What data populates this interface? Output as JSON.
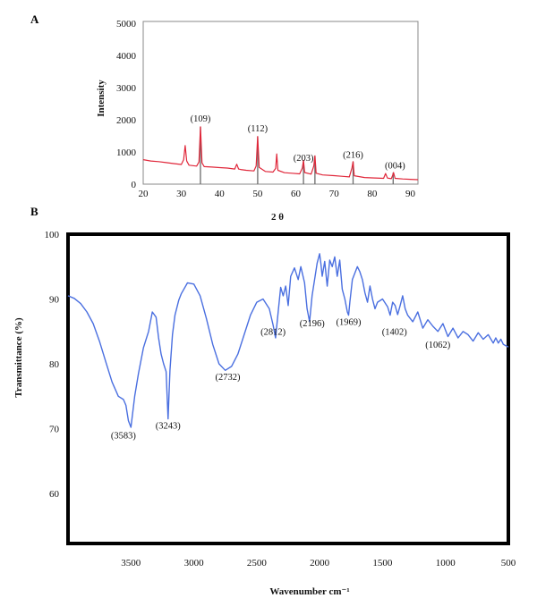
{
  "panel_labels": [
    "A",
    "B"
  ],
  "colors": {
    "xrd_line": "#e0273a",
    "xrd_stick": "#6b6b6b",
    "ftir_line": "#4a6fe0",
    "frame": "#000000"
  },
  "chart_data": [
    {
      "type": "line",
      "panel": "A",
      "title": "",
      "xlabel": "2 θ",
      "ylabel": "Intensity",
      "xlim": [
        20,
        92
      ],
      "ylim": [
        0,
        5000
      ],
      "xticks": [
        20,
        30,
        40,
        50,
        60,
        70,
        80,
        90
      ],
      "yticks": [
        0,
        1000,
        2000,
        3000,
        4000,
        5000
      ],
      "grid": false,
      "series": [
        {
          "x": [
            20,
            22,
            24,
            26,
            28,
            29,
            30,
            30.6,
            31,
            31.4,
            32,
            33,
            34,
            34.6,
            35,
            35.4,
            36,
            38,
            40,
            42,
            44,
            44.5,
            45,
            45.5,
            47,
            49,
            49.6,
            50,
            50.4,
            52,
            54,
            54.7,
            55,
            55.3,
            57,
            59,
            61,
            61.7,
            62,
            62.3,
            64,
            64.7,
            65,
            65.3,
            67,
            70,
            72,
            74,
            74.7,
            75,
            75.3,
            78,
            80,
            83,
            83.5,
            84,
            85,
            85.3,
            85.6,
            86,
            88,
            90,
            92
          ],
          "y": [
            760,
            720,
            700,
            670,
            640,
            625,
            610,
            760,
            1200,
            720,
            590,
            575,
            560,
            690,
            1780,
            660,
            545,
            530,
            515,
            500,
            470,
            620,
            470,
            455,
            430,
            410,
            560,
            1480,
            520,
            395,
            375,
            490,
            940,
            430,
            355,
            340,
            320,
            500,
            740,
            360,
            310,
            560,
            880,
            340,
            285,
            265,
            245,
            225,
            500,
            700,
            260,
            205,
            195,
            180,
            330,
            190,
            170,
            250,
            360,
            180,
            160,
            150,
            140
          ]
        }
      ],
      "reference_lines": {
        "x": [
          35,
          50,
          62,
          65,
          75,
          85.5
        ],
        "top_y": [
          1780,
          1480,
          740,
          880,
          700,
          360
        ]
      },
      "annotations": [
        {
          "text": "(109)",
          "x": 35,
          "y": 1950
        },
        {
          "text": "(112)",
          "x": 50,
          "y": 1640
        },
        {
          "text": "(203)",
          "x": 62,
          "y": 720
        },
        {
          "text": "(216)",
          "x": 75,
          "y": 820
        },
        {
          "text": "(004)",
          "x": 86,
          "y": 480
        }
      ]
    },
    {
      "type": "line",
      "panel": "B",
      "title": "",
      "xlabel": "Wavenumber cm⁻¹",
      "ylabel": "Transmittance (%)",
      "xlim": [
        4000,
        500
      ],
      "ylim": [
        52,
        100
      ],
      "xticks": [
        3500,
        3000,
        2500,
        2000,
        1500,
        1000,
        500
      ],
      "yticks": [
        60,
        70,
        80,
        90,
        100
      ],
      "grid": false,
      "series": [
        {
          "x": [
            4000,
            3950,
            3900,
            3850,
            3800,
            3750,
            3700,
            3650,
            3600,
            3560,
            3540,
            3520,
            3500,
            3470,
            3440,
            3400,
            3360,
            3330,
            3300,
            3280,
            3260,
            3240,
            3220,
            3205,
            3190,
            3170,
            3150,
            3120,
            3100,
            3050,
            3000,
            2950,
            2900,
            2850,
            2800,
            2750,
            2700,
            2650,
            2600,
            2550,
            2500,
            2450,
            2400,
            2370,
            2350,
            2330,
            2310,
            2290,
            2270,
            2250,
            2230,
            2200,
            2170,
            2150,
            2120,
            2100,
            2080,
            2060,
            2040,
            2020,
            2000,
            1990,
            1980,
            1960,
            1940,
            1920,
            1900,
            1880,
            1860,
            1840,
            1820,
            1800,
            1780,
            1770,
            1760,
            1740,
            1720,
            1700,
            1680,
            1660,
            1640,
            1620,
            1600,
            1580,
            1560,
            1540,
            1500,
            1460,
            1440,
            1420,
            1400,
            1380,
            1360,
            1340,
            1320,
            1300,
            1260,
            1220,
            1180,
            1140,
            1100,
            1060,
            1020,
            980,
            940,
            900,
            860,
            820,
            780,
            740,
            700,
            660,
            620,
            600,
            580,
            560,
            540,
            520,
            500
          ],
          "y": [
            90.5,
            90.1,
            89.3,
            88.0,
            86.2,
            83.5,
            80.3,
            77.2,
            75.0,
            74.5,
            73.6,
            71.2,
            70.2,
            75.0,
            78.5,
            82.5,
            85.0,
            88.0,
            87.2,
            84.0,
            81.5,
            80.0,
            78.8,
            71.5,
            79.0,
            84.5,
            87.5,
            89.8,
            90.8,
            92.5,
            92.3,
            90.5,
            87.0,
            83.0,
            80.0,
            79.0,
            79.6,
            81.5,
            84.5,
            87.5,
            89.5,
            90.0,
            88.5,
            86.0,
            84.0,
            88.0,
            91.8,
            90.5,
            92.0,
            89.0,
            93.5,
            94.8,
            93.0,
            95.0,
            92.5,
            88.5,
            86.5,
            90.5,
            93.0,
            95.5,
            97.0,
            95.5,
            93.5,
            95.8,
            92.0,
            96.0,
            95.0,
            96.5,
            93.5,
            96.0,
            91.5,
            90.0,
            88.0,
            87.5,
            89.5,
            93.0,
            94.0,
            95.0,
            94.2,
            93.0,
            91.0,
            89.5,
            92.0,
            90.0,
            88.5,
            89.5,
            90.0,
            88.8,
            87.5,
            89.5,
            89.0,
            87.6,
            89.0,
            90.5,
            88.5,
            87.5,
            86.5,
            88.0,
            85.5,
            86.8,
            85.8,
            85.0,
            86.2,
            84.2,
            85.5,
            84.0,
            85.0,
            84.5,
            83.5,
            84.8,
            83.8,
            84.5,
            83.2,
            84.0,
            83.2,
            83.8,
            83.0,
            82.8,
            82.6
          ]
        }
      ],
      "annotations": [
        {
          "text": "(3583)",
          "x": 3560,
          "y": 68.5
        },
        {
          "text": "(3243)",
          "x": 3205,
          "y": 70.0
        },
        {
          "text": "(2732)",
          "x": 2730,
          "y": 77.5
        },
        {
          "text": "(2812)",
          "x": 2370,
          "y": 84.5
        },
        {
          "text": "(2196)",
          "x": 2060,
          "y": 85.8
        },
        {
          "text": "(1969)",
          "x": 1770,
          "y": 86.0
        },
        {
          "text": "(1402)",
          "x": 1405,
          "y": 84.5
        },
        {
          "text": "(1062)",
          "x": 1060,
          "y": 82.5
        }
      ]
    }
  ]
}
